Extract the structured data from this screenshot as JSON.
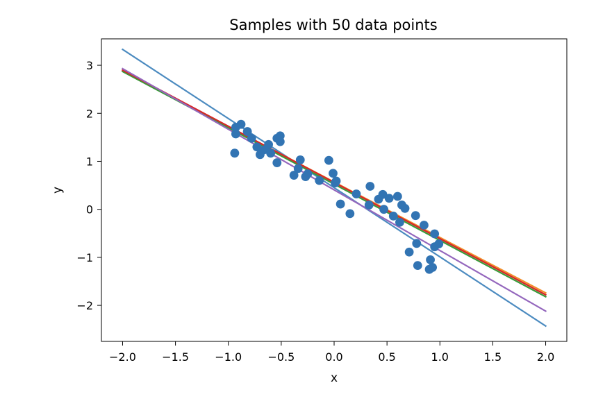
{
  "chart_data": {
    "type": "scatter",
    "title": "Samples with 50 data points",
    "xlabel": "x",
    "ylabel": "y",
    "xlim": [
      -2.2,
      2.2
    ],
    "ylim": [
      -2.75,
      3.55
    ],
    "xticks": [
      {
        "value": -2.0,
        "label": "−2.0"
      },
      {
        "value": -1.5,
        "label": "−1.5"
      },
      {
        "value": -1.0,
        "label": "−1.0"
      },
      {
        "value": -0.5,
        "label": "−0.5"
      },
      {
        "value": 0.0,
        "label": "0.0"
      },
      {
        "value": 0.5,
        "label": "0.5"
      },
      {
        "value": 1.0,
        "label": "1.0"
      },
      {
        "value": 1.5,
        "label": "1.5"
      },
      {
        "value": 2.0,
        "label": "2.0"
      }
    ],
    "yticks": [
      {
        "value": -2,
        "label": "−2"
      },
      {
        "value": -1,
        "label": "−1"
      },
      {
        "value": 0,
        "label": "0"
      },
      {
        "value": 1,
        "label": "1"
      },
      {
        "value": 2,
        "label": "2"
      },
      {
        "value": 3,
        "label": "3"
      }
    ],
    "grid": false,
    "points_color": "#3274b3",
    "points": [
      {
        "x": -0.94,
        "y": 1.17
      },
      {
        "x": -0.93,
        "y": 1.57
      },
      {
        "x": -0.93,
        "y": 1.71
      },
      {
        "x": -0.88,
        "y": 1.77
      },
      {
        "x": -0.82,
        "y": 1.62
      },
      {
        "x": -0.78,
        "y": 1.48
      },
      {
        "x": -0.73,
        "y": 1.3
      },
      {
        "x": -0.7,
        "y": 1.14
      },
      {
        "x": -0.66,
        "y": 1.24
      },
      {
        "x": -0.62,
        "y": 1.35
      },
      {
        "x": -0.6,
        "y": 1.17
      },
      {
        "x": -0.54,
        "y": 0.97
      },
      {
        "x": -0.54,
        "y": 1.48
      },
      {
        "x": -0.51,
        "y": 1.53
      },
      {
        "x": -0.51,
        "y": 1.41
      },
      {
        "x": -0.38,
        "y": 0.71
      },
      {
        "x": -0.34,
        "y": 0.85
      },
      {
        "x": -0.32,
        "y": 1.03
      },
      {
        "x": -0.27,
        "y": 0.68
      },
      {
        "x": -0.25,
        "y": 0.74
      },
      {
        "x": -0.14,
        "y": 0.6
      },
      {
        "x": -0.05,
        "y": 1.02
      },
      {
        "x": -0.01,
        "y": 0.75
      },
      {
        "x": 0.02,
        "y": 0.59
      },
      {
        "x": 0.06,
        "y": 0.11
      },
      {
        "x": 0.15,
        "y": -0.09
      },
      {
        "x": 0.21,
        "y": 0.32
      },
      {
        "x": 0.33,
        "y": 0.09
      },
      {
        "x": 0.34,
        "y": 0.48
      },
      {
        "x": 0.42,
        "y": 0.21
      },
      {
        "x": 0.46,
        "y": 0.31
      },
      {
        "x": 0.47,
        "y": 0.0
      },
      {
        "x": 0.52,
        "y": 0.23
      },
      {
        "x": 0.56,
        "y": -0.14
      },
      {
        "x": 0.6,
        "y": 0.27
      },
      {
        "x": 0.62,
        "y": -0.27
      },
      {
        "x": 0.64,
        "y": 0.09
      },
      {
        "x": 0.67,
        "y": 0.02
      },
      {
        "x": 0.71,
        "y": -0.89
      },
      {
        "x": 0.77,
        "y": -0.13
      },
      {
        "x": 0.78,
        "y": -0.71
      },
      {
        "x": 0.79,
        "y": -1.17
      },
      {
        "x": 0.85,
        "y": -0.33
      },
      {
        "x": 0.9,
        "y": -1.25
      },
      {
        "x": 0.91,
        "y": -1.05
      },
      {
        "x": 0.93,
        "y": -1.21
      },
      {
        "x": 0.95,
        "y": -0.78
      },
      {
        "x": 0.95,
        "y": -0.51
      },
      {
        "x": 0.99,
        "y": -0.72
      },
      {
        "x": 0.01,
        "y": 0.55
      }
    ],
    "lines": [
      {
        "color": "#4c8bc0",
        "x": [
          -2.0,
          2.0
        ],
        "y": [
          3.33,
          -2.43
        ]
      },
      {
        "color": "#f28e2b",
        "x": [
          -2.0,
          2.0
        ],
        "y": [
          2.88,
          -1.74
        ]
      },
      {
        "color": "#3a9a3a",
        "x": [
          -2.0,
          2.0
        ],
        "y": [
          2.87,
          -1.82
        ]
      },
      {
        "color": "#d62728",
        "x": [
          -2.0,
          2.0
        ],
        "y": [
          2.9,
          -1.78
        ]
      },
      {
        "color": "#9467bd",
        "x": [
          -2.0,
          2.0
        ],
        "y": [
          2.93,
          -2.12
        ]
      }
    ]
  }
}
